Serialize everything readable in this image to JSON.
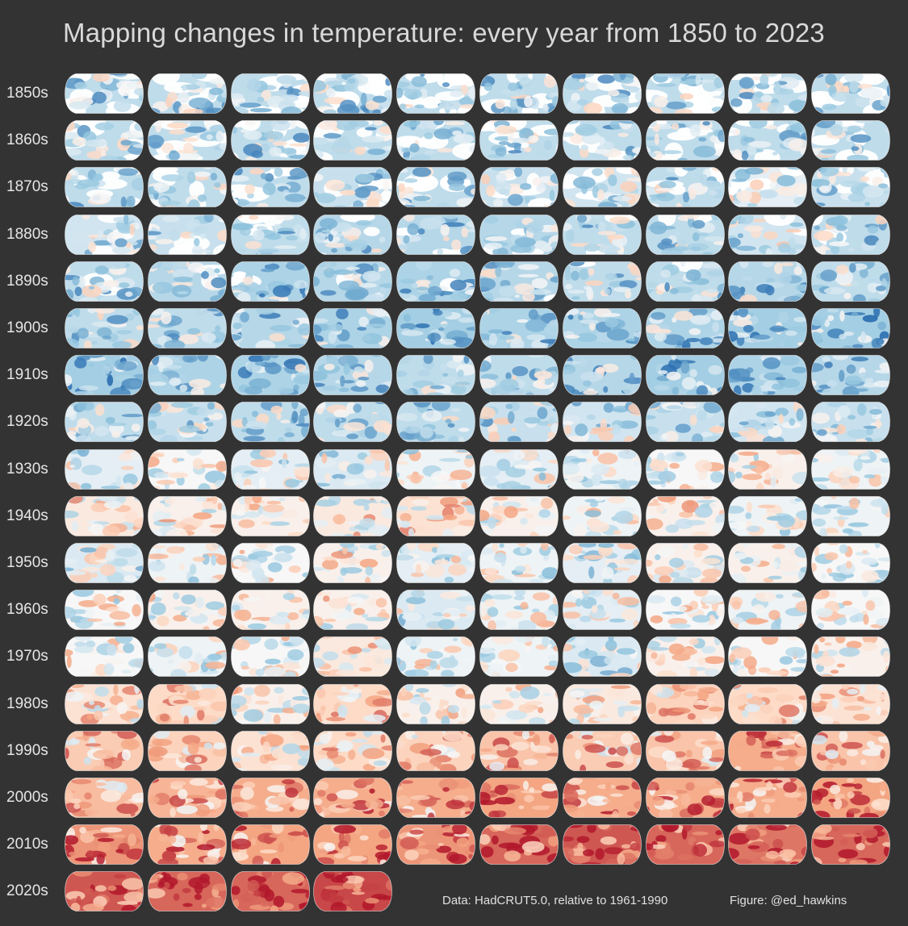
{
  "title": "Mapping changes in temperature: every year from 1850 to 2023",
  "footer": {
    "data_source": "Data: HadCRUT5.0, relative to 1961-1990",
    "figure_credit": "Figure: @ed_hawkins"
  },
  "colors": {
    "background": "#333333",
    "cold_strong": "#2166ac",
    "cold_mid": "#92c5de",
    "cold_light": "#d1e5f0",
    "neutral": "#f7f7f7",
    "warm_light": "#fddbc7",
    "warm_mid": "#f4a582",
    "warm_strong": "#b2182b",
    "missing": "#ffffff"
  },
  "chart_data": {
    "type": "heatmap",
    "title": "Mapping changes in temperature: every year from 1850 to 2023",
    "rows": [
      "1850s",
      "1860s",
      "1870s",
      "1880s",
      "1890s",
      "1900s",
      "1910s",
      "1920s",
      "1930s",
      "1940s",
      "1950s",
      "1960s",
      "1970s",
      "1980s",
      "1990s",
      "2000s",
      "2010s",
      "2020s"
    ],
    "first_year": 1850,
    "last_year": 2023,
    "columns_per_row": 10,
    "approx_warmth": [
      [
        -0.3,
        -0.3,
        -0.3,
        -0.3,
        -0.3,
        -0.3,
        -0.3,
        -0.3,
        -0.3,
        -0.3
      ],
      [
        -0.3,
        -0.3,
        -0.3,
        -0.3,
        -0.3,
        -0.3,
        -0.3,
        -0.3,
        -0.3,
        -0.3
      ],
      [
        -0.3,
        -0.3,
        -0.3,
        -0.25,
        -0.3,
        -0.25,
        -0.2,
        -0.3,
        -0.1,
        -0.25
      ],
      [
        -0.2,
        -0.25,
        -0.3,
        -0.35,
        -0.35,
        -0.35,
        -0.3,
        -0.3,
        -0.2,
        -0.3
      ],
      [
        -0.3,
        -0.35,
        -0.4,
        -0.35,
        -0.4,
        -0.35,
        -0.3,
        -0.3,
        -0.35,
        -0.3
      ],
      [
        -0.3,
        -0.3,
        -0.35,
        -0.4,
        -0.45,
        -0.4,
        -0.4,
        -0.4,
        -0.45,
        -0.45
      ],
      [
        -0.45,
        -0.4,
        -0.4,
        -0.35,
        -0.3,
        -0.3,
        -0.35,
        -0.45,
        -0.4,
        -0.35
      ],
      [
        -0.3,
        -0.25,
        -0.3,
        -0.3,
        -0.3,
        -0.25,
        -0.2,
        -0.25,
        -0.2,
        -0.25
      ],
      [
        -0.1,
        0.0,
        -0.1,
        -0.15,
        -0.05,
        -0.1,
        -0.05,
        0.0,
        0.05,
        -0.05
      ],
      [
        0.1,
        0.05,
        0.05,
        0.1,
        0.15,
        0.05,
        -0.05,
        0.05,
        -0.05,
        -0.05
      ],
      [
        -0.15,
        -0.05,
        0.0,
        0.05,
        -0.1,
        -0.05,
        -0.1,
        0.05,
        0.05,
        0.0
      ],
      [
        0.0,
        0.05,
        0.05,
        0.05,
        -0.15,
        -0.05,
        -0.1,
        0.0,
        -0.05,
        0.0
      ],
      [
        0.0,
        -0.05,
        0.0,
        0.1,
        -0.05,
        -0.05,
        -0.15,
        0.05,
        0.0,
        0.05
      ],
      [
        0.15,
        0.2,
        0.05,
        0.2,
        0.05,
        0.05,
        0.1,
        0.25,
        0.2,
        0.15
      ],
      [
        0.3,
        0.25,
        0.15,
        0.2,
        0.25,
        0.35,
        0.3,
        0.35,
        0.5,
        0.35
      ],
      [
        0.4,
        0.45,
        0.5,
        0.5,
        0.5,
        0.55,
        0.5,
        0.5,
        0.5,
        0.55
      ],
      [
        0.6,
        0.5,
        0.55,
        0.55,
        0.6,
        0.75,
        0.8,
        0.75,
        0.7,
        0.75
      ],
      [
        0.8,
        0.75,
        0.75,
        0.85
      ]
    ]
  }
}
